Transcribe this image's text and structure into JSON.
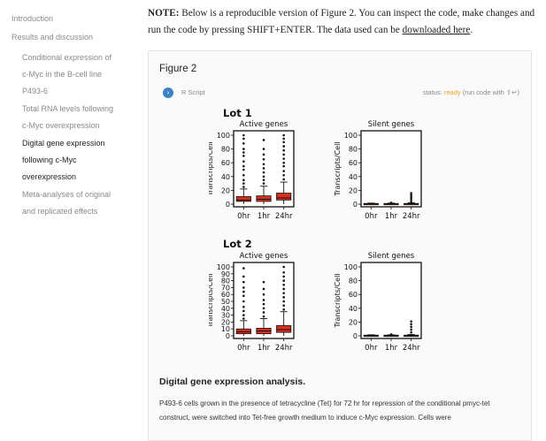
{
  "sidebar": {
    "items": [
      {
        "label": "Introduction",
        "level": 1,
        "active": false
      },
      {
        "label": "Results and discussion",
        "level": 1,
        "active": false
      },
      {
        "label": "Conditional expression of\nc-Myc in the B-cell line\nP493-6",
        "level": 2,
        "active": false
      },
      {
        "label": "Total RNA levels following\nc-Myc overexpression",
        "level": 2,
        "active": false
      },
      {
        "label": "Digital gene expression\nfollowing c-Myc\noverexpression",
        "level": 2,
        "active": true
      },
      {
        "label": "Meta-analyses of original\nand replicated effects",
        "level": 2,
        "active": false
      }
    ]
  },
  "note": {
    "lead": "NOTE:",
    "text": " Below is a reproducible version of Figure 2. You can inspect the code, make changes and run the code by pressing SHIFT+ENTER. The data used can be ",
    "link": "downloaded here",
    "end": "."
  },
  "card": {
    "figure_title": "Figure 2",
    "language": "R Script",
    "status_label": "status:",
    "status_value": "ready",
    "status_hint": "(run code with ⇧↵)",
    "caption_title": "Digital gene expression analysis.",
    "caption_text": "P493-6 cells grown in the presence of tetracycline (Tet) for 72 hr for repression of the conditional pmyc-tet construct, were switched into Tet-free growth medium to induce c-Myc expression. Cells were"
  },
  "colors": {
    "accent": "#3b82c8",
    "ready": "#f0a020",
    "box": "#d7301f"
  },
  "chart_data": [
    {
      "type": "box",
      "panel": "Lot 1",
      "title": "Active genes",
      "ylabel": "Transcripts/Cell",
      "categories": [
        "0hr",
        "1hr",
        "24hr"
      ],
      "ylim": [
        0,
        100
      ],
      "yticks": [
        0,
        20,
        40,
        60,
        80,
        100
      ],
      "boxes": [
        {
          "q1": 4,
          "median": 6,
          "q3": 11,
          "whisker_low": 0,
          "whisker_high": 22,
          "outliers": [
            25,
            30,
            35,
            42,
            50,
            55,
            62,
            70,
            75,
            80,
            88,
            95,
            100
          ]
        },
        {
          "q1": 4,
          "median": 7,
          "q3": 12,
          "whisker_low": 0,
          "whisker_high": 26,
          "outliers": [
            30,
            35,
            40,
            46,
            52,
            58,
            65,
            72,
            80,
            93
          ]
        },
        {
          "q1": 6,
          "median": 9,
          "q3": 16,
          "whisker_low": 0,
          "whisker_high": 32,
          "outliers": [
            36,
            42,
            48,
            55,
            60,
            66,
            72,
            78,
            84,
            90,
            95,
            100
          ]
        }
      ]
    },
    {
      "type": "box",
      "panel": "Lot 1",
      "title": "Silent genes",
      "ylabel": "Transcripts/Cell",
      "categories": [
        "0hr",
        "1hr",
        "24hr"
      ],
      "ylim": [
        0,
        100
      ],
      "yticks": [
        0,
        20,
        40,
        60,
        80,
        100
      ],
      "boxes": [
        {
          "q1": 0,
          "median": 0.5,
          "q3": 1,
          "whisker_low": 0,
          "whisker_high": 1.5,
          "outliers": []
        },
        {
          "q1": 0,
          "median": 0.5,
          "q3": 1,
          "whisker_low": 0,
          "whisker_high": 1.5,
          "outliers": [
            2
          ]
        },
        {
          "q1": 0,
          "median": 0.5,
          "q3": 1,
          "whisker_low": 0,
          "whisker_high": 2,
          "outliers": [
            4,
            7,
            10,
            13,
            16
          ]
        }
      ]
    },
    {
      "type": "box",
      "panel": "Lot 2",
      "title": "Active genes",
      "ylabel": "Transcripts/Cell",
      "categories": [
        "0hr",
        "1hr",
        "24hr"
      ],
      "ylim": [
        0,
        100
      ],
      "yticks": [
        0,
        10,
        20,
        30,
        40,
        50,
        60,
        70,
        80,
        90,
        100
      ],
      "boxes": [
        {
          "q1": 3,
          "median": 6,
          "q3": 10,
          "whisker_low": 0,
          "whisker_high": 22,
          "outliers": [
            25,
            30,
            36,
            42,
            50,
            58,
            64,
            70,
            78,
            86,
            98
          ]
        },
        {
          "q1": 3,
          "median": 7,
          "q3": 11,
          "whisker_low": 0,
          "whisker_high": 25,
          "outliers": [
            28,
            34,
            40,
            46,
            52,
            60,
            68,
            78
          ]
        },
        {
          "q1": 5,
          "median": 9,
          "q3": 15,
          "whisker_low": 0,
          "whisker_high": 35,
          "outliers": [
            38,
            44,
            50,
            56,
            62,
            68,
            74,
            80,
            86,
            92,
            100
          ]
        }
      ]
    },
    {
      "type": "box",
      "panel": "Lot 2",
      "title": "Silent genes",
      "ylabel": "Transcripts/Cell",
      "categories": [
        "0hr",
        "1hr",
        "24hr"
      ],
      "ylim": [
        0,
        100
      ],
      "yticks": [
        0,
        20,
        40,
        60,
        80,
        100
      ],
      "boxes": [
        {
          "q1": 0,
          "median": 0.5,
          "q3": 1,
          "whisker_low": 0,
          "whisker_high": 1.5,
          "outliers": []
        },
        {
          "q1": 0,
          "median": 0.5,
          "q3": 1,
          "whisker_low": 0,
          "whisker_high": 1.5,
          "outliers": [
            2
          ]
        },
        {
          "q1": 0,
          "median": 0.5,
          "q3": 1,
          "whisker_low": 0,
          "whisker_high": 2,
          "outliers": [
            5,
            9,
            13,
            17,
            21
          ]
        }
      ]
    }
  ]
}
